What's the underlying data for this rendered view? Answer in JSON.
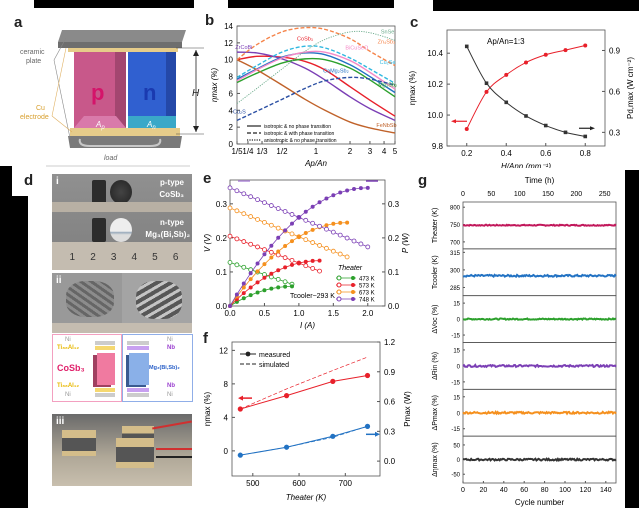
{
  "panels": {
    "a": {
      "label": "a",
      "ceramic_label_1": "ceramic",
      "ceramic_label_2": "plate",
      "cu_label_1": "Cu",
      "cu_label_2": "electrode",
      "p_leg": "p",
      "n_leg": "n",
      "ap": "A",
      "ap_sub": "p",
      "an": "A",
      "an_sub": "n",
      "height": "H",
      "load": "load",
      "colors": {
        "p": "#c2507f",
        "n": "#2f55c8",
        "cu": "#e0b060",
        "ceramic": "#9a9a9a"
      }
    },
    "d": {
      "label": "d",
      "i_label": "i",
      "ii_label": "ii",
      "iii_label": "iii",
      "p_type": "p-type",
      "p_mat": "CoSb₃",
      "n_type": "n-type",
      "n_mat": "Mg₃(Bi,Sb)₂",
      "ruler": [
        "1",
        "2",
        "3",
        "4",
        "5",
        "6"
      ],
      "p_stack": [
        "Ni",
        "Ti₈₈Al₁₂",
        "CoSb₃",
        "Ti₈₈Al₁₂",
        "Ni"
      ],
      "n_stack": [
        "Ni",
        "Nb",
        "Mg₃(Bi,Sb)₂",
        "Nb",
        "Ni"
      ]
    }
  },
  "chart_data": [
    {
      "id": "b",
      "label": "b",
      "type": "line",
      "xlabel": "Ap/An",
      "ylabel": "ηmax (%)",
      "xscale": "log",
      "xlim": [
        0.2,
        5
      ],
      "ylim": [
        0,
        14
      ],
      "xticks": [
        {
          "v": 0.2,
          "t": "1/5"
        },
        {
          "v": 0.25,
          "t": "1/4"
        },
        {
          "v": 0.333,
          "t": "1/3"
        },
        {
          "v": 0.5,
          "t": "1/2"
        },
        {
          "v": 1,
          "t": "1"
        },
        {
          "v": 2,
          "t": "2"
        },
        {
          "v": 3,
          "t": "3"
        },
        {
          "v": 4,
          "t": "4"
        },
        {
          "v": 5,
          "t": "5"
        }
      ],
      "yticks": [
        0,
        2,
        4,
        6,
        8,
        10,
        12,
        14
      ],
      "legend": [
        {
          "style": "solid",
          "text": "isotropic & no phase transition"
        },
        {
          "style": "dashed",
          "text": "isotropic & with phase transition"
        },
        {
          "style": "dotted",
          "text": "anisotropic & no phase transition"
        }
      ],
      "series": [
        {
          "name": "CoSb₃",
          "color": "#e8202a",
          "style": "solid",
          "x": [
            0.2,
            0.3,
            0.5,
            0.8,
            1.2,
            2,
            3,
            5
          ],
          "y": [
            10.0,
            10.4,
            10.3,
            9.8,
            8.8,
            6.8,
            5.2,
            3.3
          ]
        },
        {
          "name": "ZrCoBi",
          "color": "#7b3fb5",
          "style": "solid",
          "x": [
            0.2,
            0.3,
            0.5,
            0.8,
            1.2,
            2,
            3,
            5
          ],
          "y": [
            10.9,
            10.8,
            10.1,
            9.0,
            7.6,
            5.6,
            4.2,
            2.8
          ]
        },
        {
          "name": "CaMg₂Sb₂",
          "color": "#2272c3",
          "style": "solid",
          "x": [
            0.2,
            0.3,
            0.5,
            0.8,
            1.2,
            2,
            3,
            5
          ],
          "y": [
            7.7,
            8.9,
            10.3,
            10.8,
            10.6,
            9.4,
            8.0,
            6.1
          ]
        },
        {
          "name": "Mg₃Sb₂",
          "color": "#2ca02c",
          "style": "solid",
          "x": [
            0.2,
            0.3,
            0.5,
            0.8,
            1.2,
            2,
            3,
            5
          ],
          "y": [
            7.3,
            8.4,
            9.6,
            10.1,
            10.0,
            9.0,
            7.6,
            5.6
          ]
        },
        {
          "name": "FeNbSb",
          "color": "#c0622a",
          "style": "solid",
          "x": [
            0.2,
            0.3,
            0.5,
            0.8,
            1.2,
            2,
            3,
            5
          ],
          "y": [
            10.0,
            8.8,
            7.0,
            5.3,
            4.0,
            2.6,
            1.9,
            1.3
          ]
        },
        {
          "name": "BiCuSeO",
          "color": "#f58ac8",
          "style": "solid",
          "x": [
            0.2,
            0.3,
            0.5,
            0.8,
            1.2,
            2,
            3,
            5
          ],
          "y": [
            7.5,
            8.8,
            10.2,
            10.9,
            10.9,
            9.9,
            8.5,
            6.5
          ]
        },
        {
          "name": "Zn₄Sb₃",
          "color": "#f5844a",
          "style": "dashed",
          "x": [
            0.2,
            0.3,
            0.5,
            0.8,
            1.2,
            2,
            3,
            5
          ],
          "y": [
            10.0,
            11.8,
            13.3,
            13.8,
            13.6,
            12.5,
            11.0,
            9.3
          ]
        },
        {
          "name": "Cu₂Se",
          "color": "#30b8e0",
          "style": "dashed",
          "x": [
            0.2,
            0.3,
            0.5,
            0.8,
            1.2,
            2,
            3,
            5
          ],
          "y": [
            7.9,
            9.3,
            10.9,
            11.6,
            11.4,
            10.2,
            8.9,
            7.2
          ]
        },
        {
          "name": "Cu₂S",
          "color": "#2b4fa3",
          "style": "dashed",
          "x": [
            0.2,
            0.3,
            0.5,
            0.8,
            1.2,
            2,
            3,
            5
          ],
          "y": [
            2.8,
            3.9,
            5.3,
            6.6,
            7.5,
            7.9,
            7.7,
            7.0
          ]
        },
        {
          "name": "SnSe",
          "color": "#6aaa8a",
          "style": "dotted",
          "x": [
            0.2,
            0.3,
            0.5,
            0.8,
            1.2,
            2,
            3,
            5
          ],
          "y": [
            4.8,
            6.6,
            8.9,
            11.0,
            12.4,
            13.3,
            13.2,
            12.3
          ]
        }
      ]
    },
    {
      "id": "c",
      "label": "c",
      "type": "line",
      "annotation": "Ap/An=1:3",
      "xlabel": "H/Ann (mm⁻¹)",
      "ylabel": "ηmax (%)",
      "y2label": "Pd,max (W cm⁻²)",
      "xlim": [
        0.1,
        0.9
      ],
      "ylim": [
        9.8,
        10.55
      ],
      "y2lim": [
        0.2,
        1.05
      ],
      "xticks": [
        0.2,
        0.4,
        0.6,
        0.8
      ],
      "yticks": [
        9.8,
        10.0,
        10.2,
        10.4
      ],
      "y2ticks": [
        0.3,
        0.6,
        0.9
      ],
      "series": [
        {
          "name": "ηmax",
          "axis": "left",
          "color": "#e8202a",
          "x": [
            0.2,
            0.3,
            0.4,
            0.5,
            0.6,
            0.7,
            0.8
          ],
          "y": [
            9.91,
            10.15,
            10.26,
            10.34,
            10.39,
            10.42,
            10.45
          ]
        },
        {
          "name": "Pd,max",
          "axis": "right",
          "color": "#333333",
          "x": [
            0.2,
            0.3,
            0.4,
            0.5,
            0.6,
            0.7,
            0.8
          ],
          "y": [
            0.93,
            0.66,
            0.52,
            0.42,
            0.35,
            0.3,
            0.27
          ]
        }
      ]
    },
    {
      "id": "e",
      "label": "e",
      "type": "line",
      "xlabel": "I (A)",
      "ylabel": "V (V)",
      "y2label": "P (W)",
      "xlim": [
        0,
        2.25
      ],
      "ylim": [
        0,
        0.37
      ],
      "y2lim": [
        0,
        0.37
      ],
      "xticks": [
        0.0,
        0.5,
        1.0,
        1.5,
        2.0
      ],
      "yticks": [
        0.0,
        0.1,
        0.2,
        0.3
      ],
      "y2ticks": [
        0.0,
        0.1,
        0.2,
        0.3
      ],
      "annotation": "Tcooler~293 K",
      "legend_title": "Theater",
      "series": [
        {
          "name": "473 K",
          "color": "#2ca02c",
          "V0": 0.128,
          "Imax": 0.9
        },
        {
          "name": "573 K",
          "color": "#e8202a",
          "V0": 0.205,
          "Imax": 1.3
        },
        {
          "name": "673 K",
          "color": "#f5901e",
          "V0": 0.288,
          "Imax": 1.7
        },
        {
          "name": "748 K",
          "color": "#7b3fb5",
          "V0": 0.347,
          "Imax": 2.0
        }
      ]
    },
    {
      "id": "f",
      "label": "f",
      "type": "line",
      "xlabel": "Theater (K)",
      "ylabel": "ηmax (%)",
      "y2label": "Pmax (W)",
      "xlim": [
        455,
        775
      ],
      "ylim": [
        -3,
        13
      ],
      "y2lim": [
        -0.15,
        1.2
      ],
      "xticks": [
        500,
        600,
        700
      ],
      "yticks": [
        0,
        4,
        8,
        12
      ],
      "y2ticks": [
        0.0,
        0.3,
        0.6,
        0.9,
        1.2
      ],
      "legend": [
        {
          "style": "solid",
          "text": "measured"
        },
        {
          "style": "dashed",
          "text": "simulated"
        }
      ],
      "series": [
        {
          "name": "ηmax measured",
          "axis": "left",
          "color": "#e8202a",
          "style": "solid",
          "x": [
            473,
            573,
            673,
            748
          ],
          "y": [
            5.0,
            6.6,
            8.3,
            9.0
          ]
        },
        {
          "name": "ηmax simulated",
          "axis": "left",
          "color": "#e8202a",
          "style": "dashed",
          "x": [
            473,
            573,
            673,
            748
          ],
          "y": [
            5.0,
            7.4,
            9.6,
            11.2
          ]
        },
        {
          "name": "Pmax measured",
          "axis": "right",
          "color": "#2272c3",
          "style": "solid",
          "x": [
            473,
            573,
            673,
            748
          ],
          "y": [
            0.06,
            0.14,
            0.25,
            0.35
          ]
        },
        {
          "name": "Pmax simulated",
          "axis": "right",
          "color": "#2272c3",
          "style": "dashed",
          "x": [
            473,
            573,
            673,
            748
          ],
          "y": [
            0.06,
            0.14,
            0.24,
            0.35
          ]
        }
      ]
    },
    {
      "id": "g",
      "label": "g",
      "type": "line",
      "top_xlabel": "Time (h)",
      "top_xticks": [
        0,
        50,
        100,
        150,
        200,
        250
      ],
      "top_xlim": [
        0,
        270
      ],
      "xlabel": "Cycle number",
      "xticks": [
        0,
        20,
        40,
        60,
        80,
        100,
        120,
        140
      ],
      "xlim": [
        0,
        150
      ],
      "subplots": [
        {
          "ylabel": "Theater (K)",
          "color": "#c2185b",
          "ylim": [
            680,
            815
          ],
          "yticks": [
            700,
            750,
            800
          ],
          "level": 748,
          "noise": 1.5
        },
        {
          "ylabel": "Tcooler (K)",
          "color": "#2272c3",
          "ylim": [
            278,
            318
          ],
          "yticks": [
            285,
            300,
            315
          ],
          "level": 295,
          "noise": 0.8
        },
        {
          "ylabel": "ΔVoc (%)",
          "color": "#2ca02c",
          "ylim": [
            -22,
            22
          ],
          "yticks": [
            -15,
            0,
            15
          ],
          "level": 0,
          "noise": 0.6
        },
        {
          "ylabel": "ΔRin (%)",
          "color": "#7b3fb5",
          "ylim": [
            -22,
            22
          ],
          "yticks": [
            -15,
            0,
            15
          ],
          "level": 0,
          "noise": 0.9
        },
        {
          "ylabel": "ΔPmax (%)",
          "color": "#f5901e",
          "ylim": [
            -22,
            22
          ],
          "yticks": [
            -15,
            0,
            15
          ],
          "level": 0,
          "noise": 0.9
        },
        {
          "ylabel": "Δηmax (%)",
          "color": "#333333",
          "ylim": [
            -80,
            80
          ],
          "yticks": [
            -50,
            0,
            50
          ],
          "level": 0,
          "noise": 3
        }
      ]
    }
  ]
}
